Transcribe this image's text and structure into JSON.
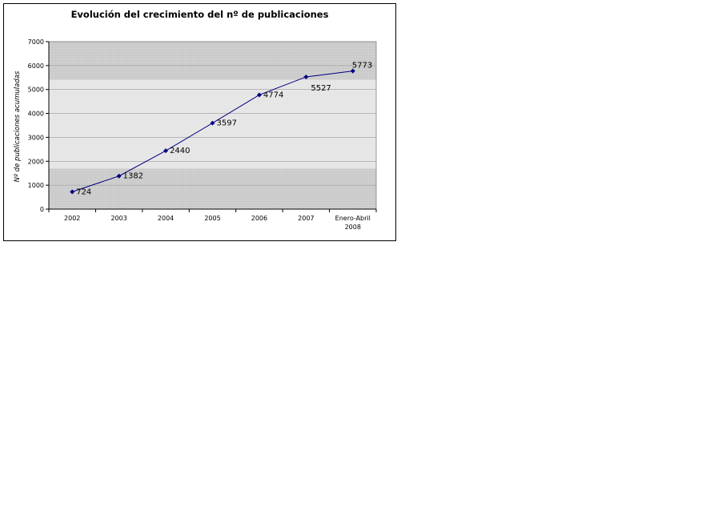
{
  "chart_data": {
    "type": "line",
    "title": "Evolución del crecimiento del nº de publicaciones",
    "xlabel": "",
    "ylabel": "Nº de publicaciones acumuladas",
    "categories": [
      [
        "2002"
      ],
      [
        "2003"
      ],
      [
        "2004"
      ],
      [
        "2005"
      ],
      [
        "2006"
      ],
      [
        "2007"
      ],
      [
        "Enero-Abril",
        "2008"
      ]
    ],
    "values": [
      724,
      1382,
      2440,
      3597,
      4774,
      5527,
      5773
    ],
    "ylim": [
      0,
      7000
    ],
    "yticks": [
      0,
      1000,
      2000,
      3000,
      4000,
      5000,
      6000,
      7000
    ],
    "grid": true,
    "legend": "none",
    "colors": {
      "line": "#000080",
      "marker": "#000080",
      "plot_band_dark": "#c8c8c8",
      "plot_band_light": "#e4e4e4"
    }
  }
}
